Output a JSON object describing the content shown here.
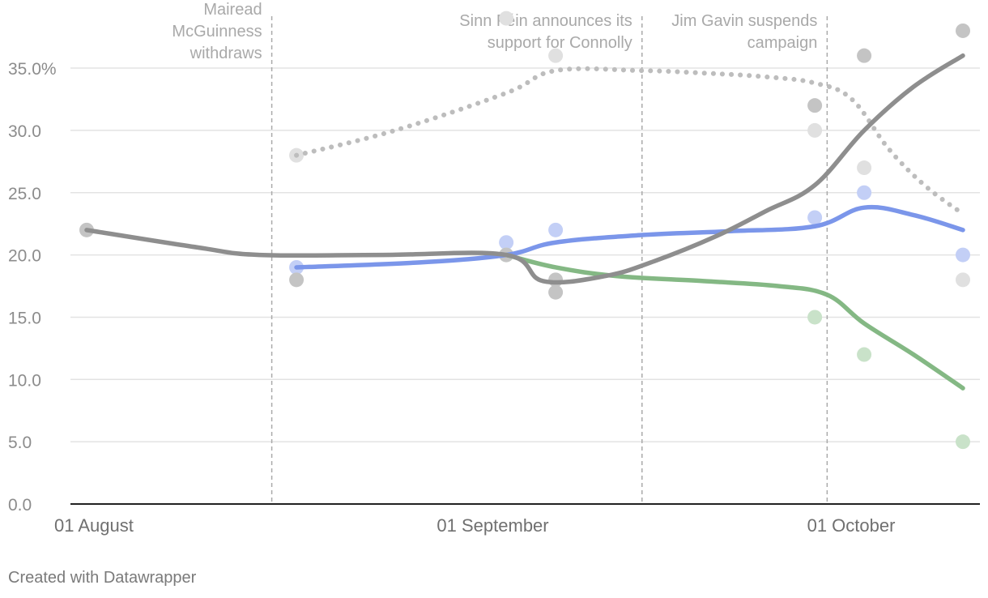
{
  "chart_data": {
    "type": "line",
    "x_axis": {
      "tick_labels": [
        {
          "date": "2025-08-01",
          "label": "01 August"
        },
        {
          "date": "2025-09-01",
          "label": "01 September"
        },
        {
          "date": "2025-10-01",
          "label": "01 October"
        }
      ],
      "range": [
        "2025-08-01",
        "2025-10-11"
      ]
    },
    "y_axis": {
      "range": [
        0,
        37
      ],
      "ticks": [
        0,
        5,
        10,
        15,
        20,
        25,
        30,
        35
      ],
      "tick_labels": [
        "0.0",
        "5.0",
        "10.0",
        "15.0",
        "20.0",
        "25.0",
        "30.0",
        "35.0%"
      ]
    },
    "grid": true,
    "legend": "none",
    "annotations": [
      {
        "date": "2025-08-16",
        "text": [
          "Mairead",
          "McGuinness",
          "withdraws"
        ]
      },
      {
        "date": "2025-09-15",
        "text": [
          "Sinn Féin announces its",
          "support for Connolly"
        ]
      },
      {
        "date": "2025-09-30",
        "text": [
          "Jim Gavin suspends",
          "campaign"
        ]
      }
    ],
    "series": [
      {
        "color": "#bdbdbd",
        "style": "dotted",
        "trend": [
          [
            "2025-08-18",
            28
          ],
          [
            "2025-08-26",
            30
          ],
          [
            "2025-09-04",
            33
          ],
          [
            "2025-09-08",
            34.8
          ],
          [
            "2025-09-15",
            34.8
          ],
          [
            "2025-09-20",
            34.6
          ],
          [
            "2025-09-25",
            34.3
          ],
          [
            "2025-09-29",
            33.8
          ],
          [
            "2025-10-02",
            32.5
          ],
          [
            "2025-10-05",
            28.5
          ],
          [
            "2025-10-08",
            25.5
          ],
          [
            "2025-10-11",
            23.3
          ]
        ],
        "points": [
          [
            "2025-08-18",
            28
          ],
          [
            "2025-09-04",
            39
          ],
          [
            "2025-09-08",
            36
          ],
          [
            "2025-09-29",
            30
          ],
          [
            "2025-10-03",
            27
          ],
          [
            "2025-10-11",
            18
          ]
        ],
        "point_color": "#e0e0e0"
      },
      {
        "color": "#7b96ea",
        "style": "solid",
        "trend": [
          [
            "2025-08-18",
            19
          ],
          [
            "2025-08-28",
            19.4
          ],
          [
            "2025-09-04",
            20
          ],
          [
            "2025-09-08",
            21
          ],
          [
            "2025-09-15",
            21.6
          ],
          [
            "2025-09-22",
            21.9
          ],
          [
            "2025-09-29",
            22.3
          ],
          [
            "2025-10-03",
            23.8
          ],
          [
            "2025-10-07",
            23.2
          ],
          [
            "2025-10-11",
            22
          ]
        ],
        "points": [
          [
            "2025-08-18",
            19
          ],
          [
            "2025-09-04",
            21
          ],
          [
            "2025-09-08",
            22
          ],
          [
            "2025-09-29",
            23
          ],
          [
            "2025-10-03",
            25
          ],
          [
            "2025-10-11",
            20
          ]
        ],
        "point_color": "#c3cff6"
      },
      {
        "color": "#84b884",
        "style": "solid",
        "trend": [
          [
            "2025-09-04",
            20
          ],
          [
            "2025-09-08",
            19
          ],
          [
            "2025-09-13",
            18.3
          ],
          [
            "2025-09-20",
            17.9
          ],
          [
            "2025-09-26",
            17.5
          ],
          [
            "2025-09-30",
            16.8
          ],
          [
            "2025-10-03",
            14.5
          ],
          [
            "2025-10-07",
            12
          ],
          [
            "2025-10-11",
            9.3
          ]
        ],
        "points": [
          [
            "2025-09-04",
            20
          ],
          [
            "2025-09-29",
            15
          ],
          [
            "2025-10-03",
            12
          ],
          [
            "2025-10-11",
            5
          ]
        ],
        "point_color": "#c9e2c9"
      },
      {
        "color": "#8e8e8e",
        "style": "solid",
        "trend": [
          [
            "2025-08-01",
            22
          ],
          [
            "2025-08-10",
            20.6
          ],
          [
            "2025-08-15",
            20
          ],
          [
            "2025-08-25",
            20
          ],
          [
            "2025-09-04",
            20
          ],
          [
            "2025-09-07",
            17.9
          ],
          [
            "2025-09-12",
            18.3
          ],
          [
            "2025-09-16",
            19.5
          ],
          [
            "2025-09-21",
            21.5
          ],
          [
            "2025-09-25",
            23.5
          ],
          [
            "2025-09-29",
            25.6
          ],
          [
            "2025-10-03",
            30
          ],
          [
            "2025-10-07",
            33.5
          ],
          [
            "2025-10-11",
            36
          ]
        ],
        "points": [
          [
            "2025-08-01",
            22
          ],
          [
            "2025-08-18",
            18
          ],
          [
            "2025-09-04",
            20
          ],
          [
            "2025-09-08",
            17
          ],
          [
            "2025-09-08",
            18
          ],
          [
            "2025-09-29",
            32
          ],
          [
            "2025-10-03",
            36
          ],
          [
            "2025-10-11",
            38
          ]
        ],
        "point_color": "#c4c4c4"
      }
    ]
  },
  "credit": "Created with Datawrapper"
}
